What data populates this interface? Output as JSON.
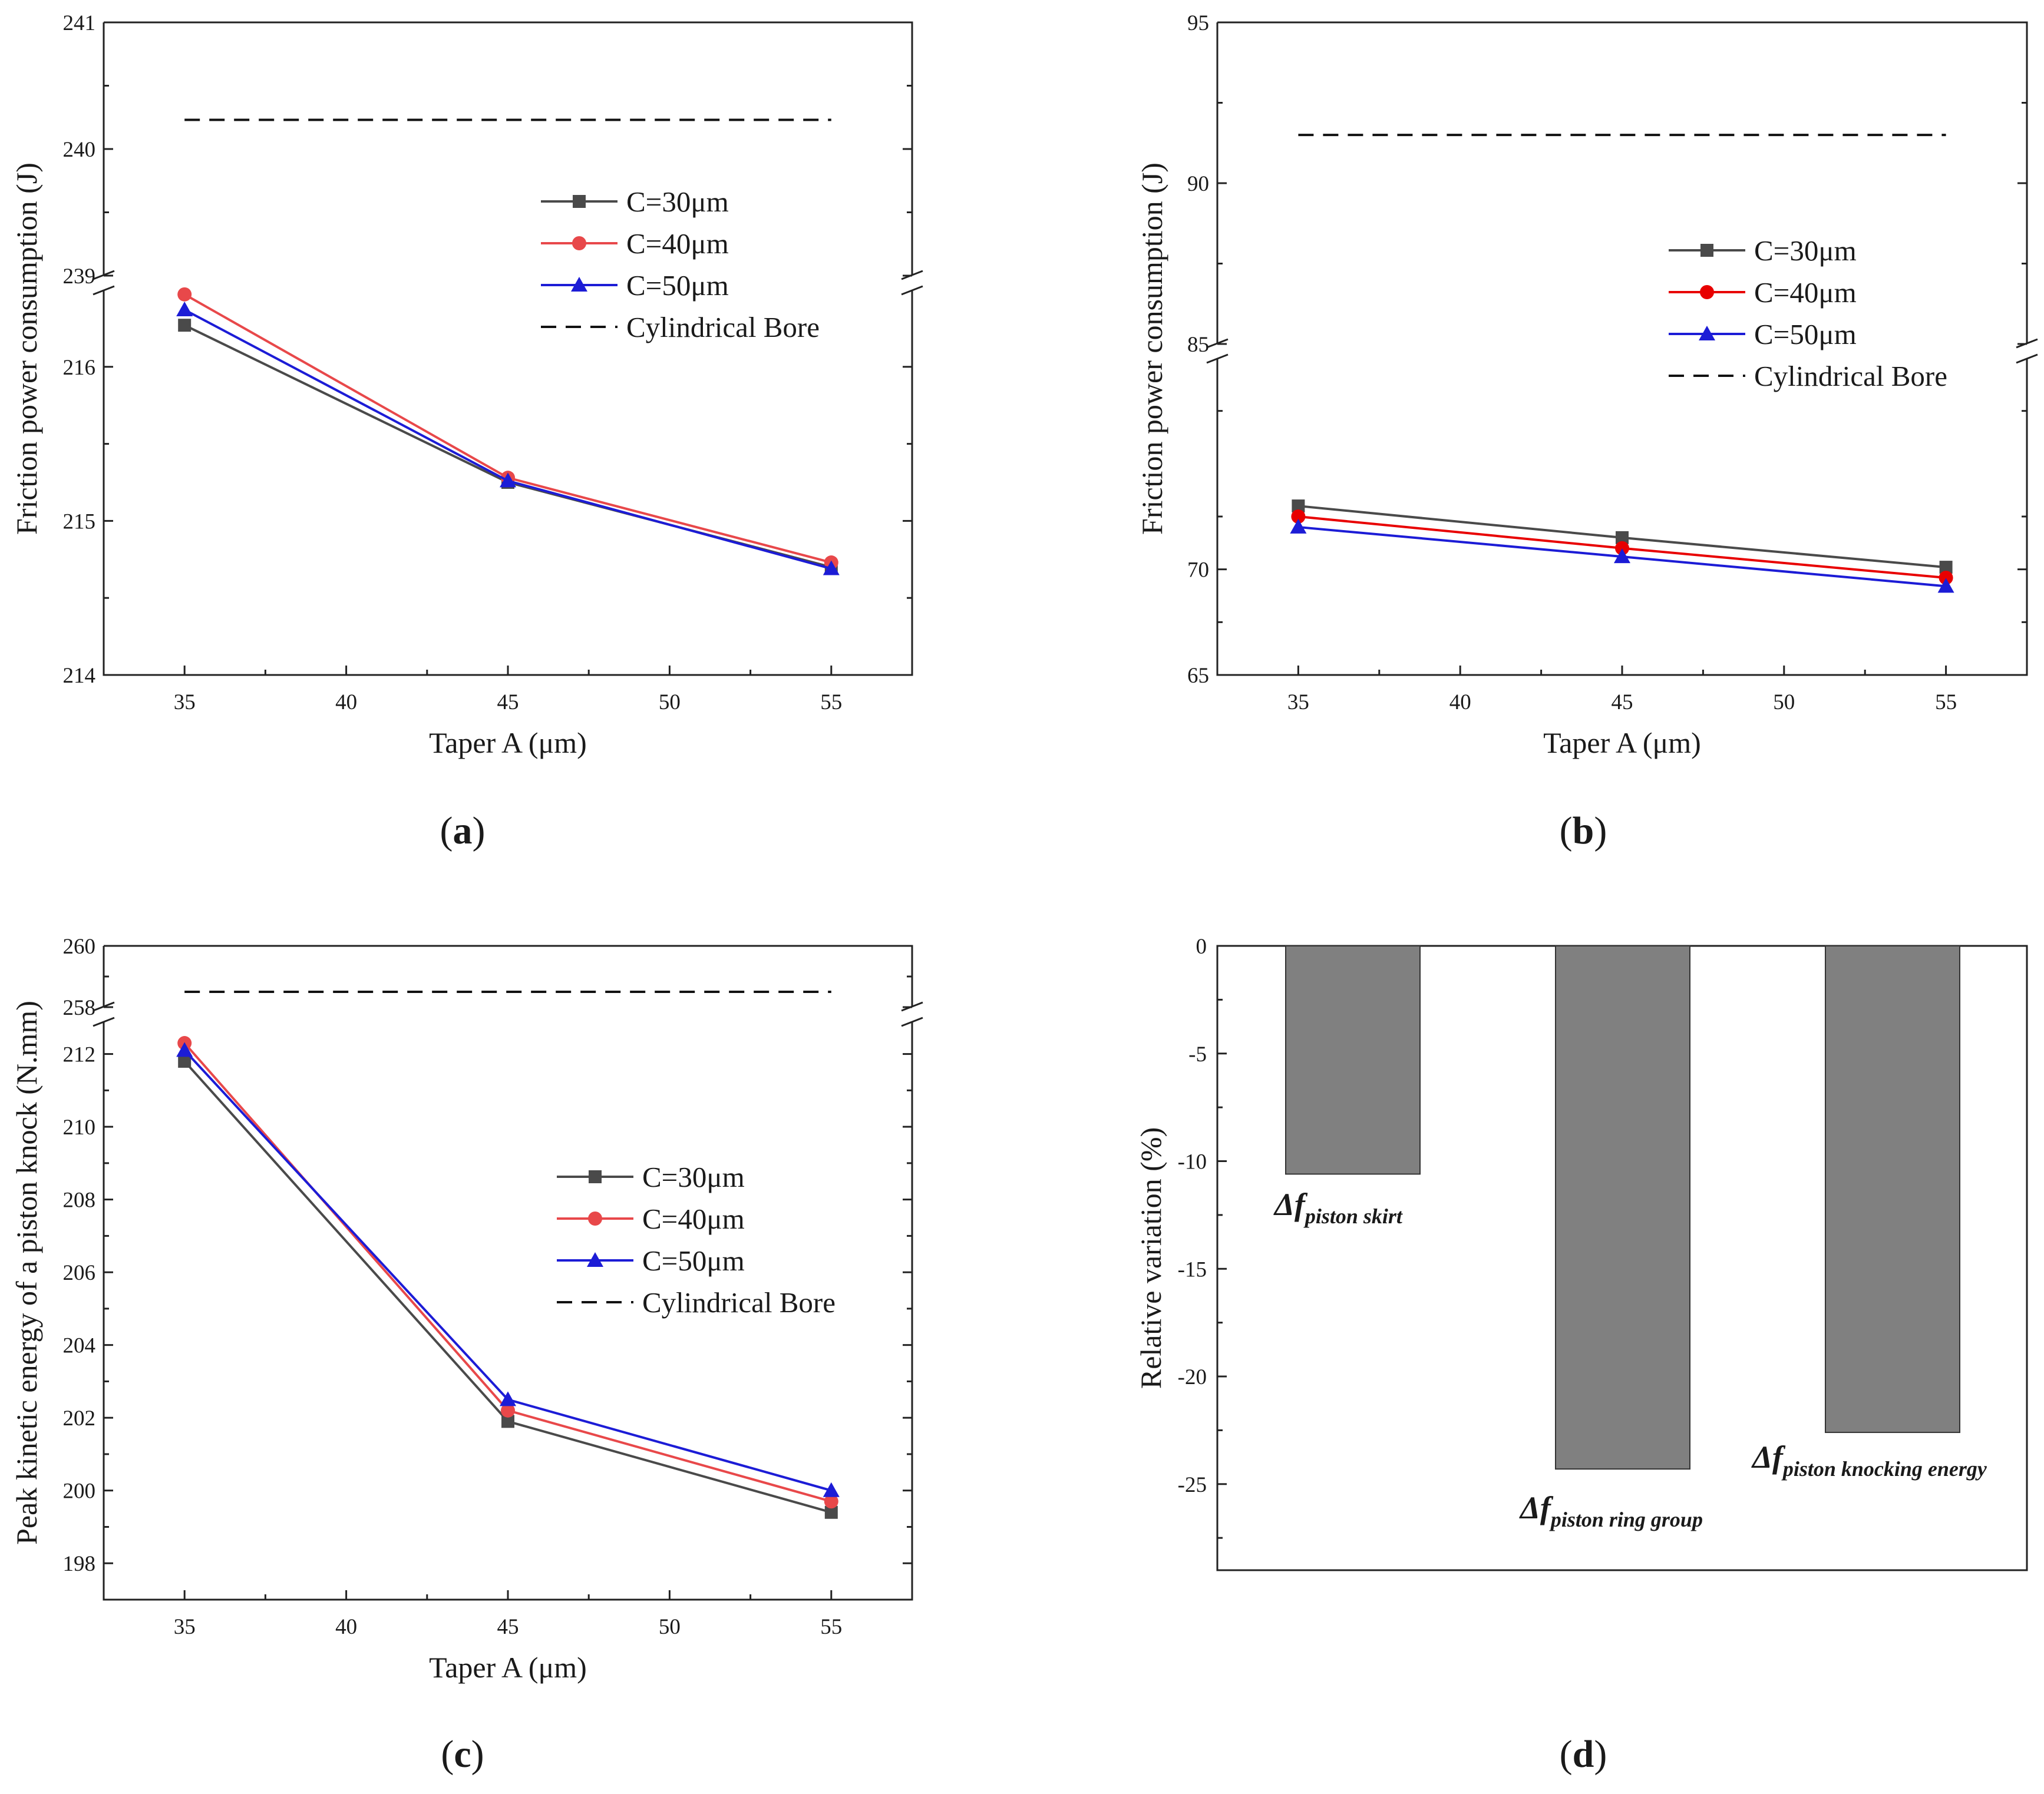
{
  "chart_data": [
    {
      "type": "line",
      "panel_label": "(a)",
      "xlabel": "Taper A (μm)",
      "ylabel": "Friction power consumption (J)",
      "x_ticks": [
        35,
        40,
        45,
        50,
        55
      ],
      "y_ticks_lower": [
        "214",
        "215",
        "216"
      ],
      "y_ticks_upper": [
        "239",
        "240",
        "241"
      ],
      "axis_break": true,
      "ylim_lower": [
        214,
        216.5
      ],
      "ylim_upper": [
        239,
        241
      ],
      "x": [
        35,
        45,
        55
      ],
      "series": [
        {
          "name": "C=30μm",
          "values": [
            216.27,
            215.25,
            214.7
          ],
          "color": "#4a4a4a",
          "marker": "square"
        },
        {
          "name": "C=40μm",
          "values": [
            216.47,
            215.28,
            214.73
          ],
          "color": "#e8484a",
          "marker": "circle"
        },
        {
          "name": "C=50μm",
          "values": [
            216.37,
            215.26,
            214.69
          ],
          "color": "#1c1cd6",
          "marker": "triangle"
        },
        {
          "name": "Cylindrical Bore",
          "values": [
            240.23,
            240.23,
            240.23
          ],
          "color": "#111111",
          "dashed": true
        }
      ],
      "legend_position": "upper-right"
    },
    {
      "type": "line",
      "panel_label": "(b)",
      "xlabel": "Taper A (μm)",
      "ylabel": "Friction power consumption (J)",
      "x_ticks": [
        35,
        40,
        45,
        50,
        55
      ],
      "y_ticks_lower": [
        "65",
        "70"
      ],
      "y_ticks_upper": [
        "85",
        "90",
        "95"
      ],
      "axis_break": true,
      "ylim_lower": [
        65,
        80
      ],
      "ylim_upper": [
        85,
        95
      ],
      "x": [
        35,
        45,
        55
      ],
      "series": [
        {
          "name": "C=30μm",
          "values": [
            73.0,
            71.5,
            70.1
          ],
          "color": "#4a4a4a",
          "marker": "square"
        },
        {
          "name": "C=40μm",
          "values": [
            72.5,
            71.0,
            69.6
          ],
          "color": "#e80000",
          "marker": "circle"
        },
        {
          "name": "C=50μm",
          "values": [
            72.0,
            70.6,
            69.2
          ],
          "color": "#1c1cd6",
          "marker": "triangle"
        },
        {
          "name": "Cylindrical Bore",
          "values": [
            91.5,
            91.5,
            91.5
          ],
          "color": "#111111",
          "dashed": true
        }
      ],
      "legend_position": "middle-right"
    },
    {
      "type": "line",
      "panel_label": "(c)",
      "xlabel": "Taper A (μm)",
      "ylabel": "Peak kinetic energy of a piston knock (N.mm)",
      "x_ticks": [
        35,
        40,
        45,
        50,
        55
      ],
      "y_ticks_lower": [
        "198",
        "200",
        "202",
        "204",
        "206",
        "208",
        "210",
        "212"
      ],
      "y_ticks_upper": [
        "258",
        "260"
      ],
      "axis_break": true,
      "ylim_lower": [
        197,
        212.9
      ],
      "ylim_upper": [
        258,
        260
      ],
      "x": [
        35,
        45,
        55
      ],
      "series": [
        {
          "name": "C=30μm",
          "values": [
            211.8,
            201.9,
            199.4
          ],
          "color": "#4a4a4a",
          "marker": "square"
        },
        {
          "name": "C=40μm",
          "values": [
            212.3,
            202.2,
            199.7
          ],
          "color": "#e8484a",
          "marker": "circle"
        },
        {
          "name": "C=50μm",
          "values": [
            212.1,
            202.5,
            200.0
          ],
          "color": "#1c1cd6",
          "marker": "triangle"
        },
        {
          "name": "Cylindrical Bore",
          "values": [
            258.5,
            258.5,
            258.5
          ],
          "color": "#111111",
          "dashed": true
        }
      ],
      "legend_position": "middle-right"
    },
    {
      "type": "bar",
      "panel_label": "(d)",
      "xlabel": "",
      "ylabel": "Relative variation (%)",
      "y_ticks": [
        "0",
        "-5",
        "-10",
        "-15",
        "-20",
        "-25"
      ],
      "ylim": [
        -29,
        0
      ],
      "categories": [
        {
          "main": "Δf",
          "sub": "piston skirt"
        },
        {
          "main": "Δf",
          "sub": "piston ring group"
        },
        {
          "main": "Δf",
          "sub": "piston knocking energy"
        }
      ],
      "values": [
        -10.6,
        -24.3,
        -22.6
      ],
      "bar_color": "#808080"
    }
  ]
}
